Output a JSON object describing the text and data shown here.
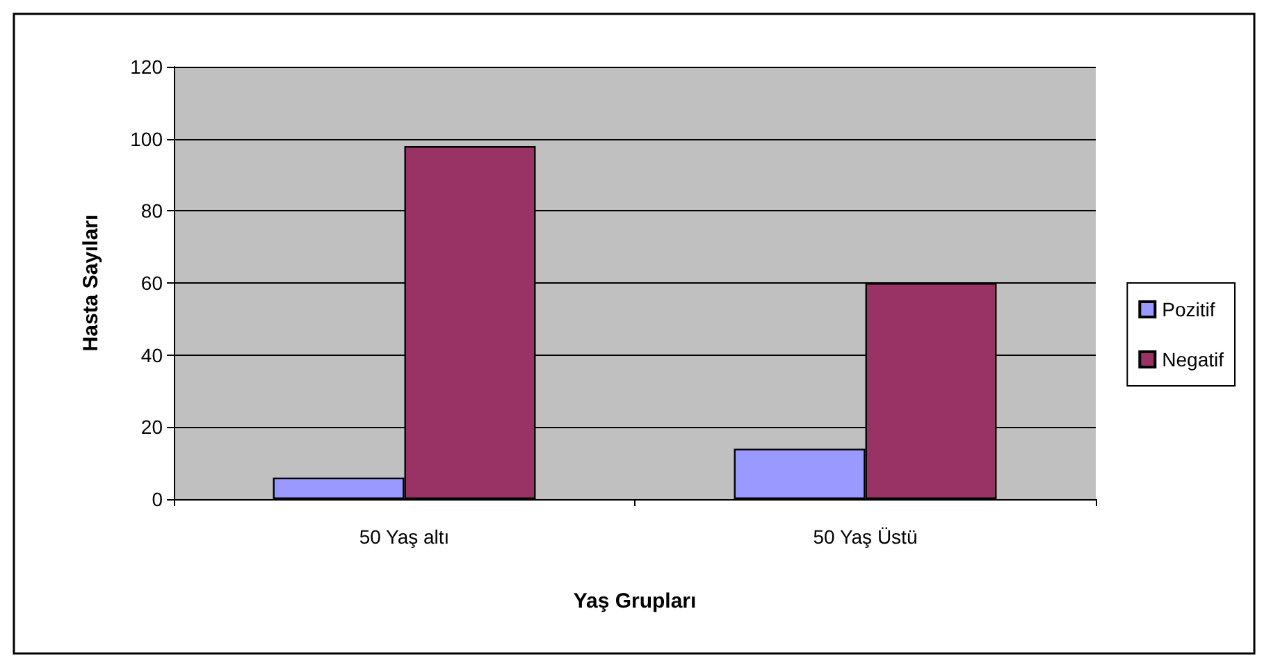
{
  "chart_data": {
    "type": "bar",
    "xlabel": "Yaş Grupları",
    "ylabel": "Hasta Sayıları",
    "categories": [
      "50 Yaş altı",
      "50 Yaş Üstü"
    ],
    "series": [
      {
        "name": "Pozitif",
        "color": "#9999ff",
        "values": [
          6,
          14
        ]
      },
      {
        "name": "Negatif",
        "color": "#993366",
        "values": [
          98,
          60
        ]
      }
    ],
    "ylim": [
      0,
      120
    ],
    "yticks": [
      0,
      20,
      40,
      60,
      80,
      100,
      120
    ],
    "grid": "y",
    "legend": "right"
  }
}
